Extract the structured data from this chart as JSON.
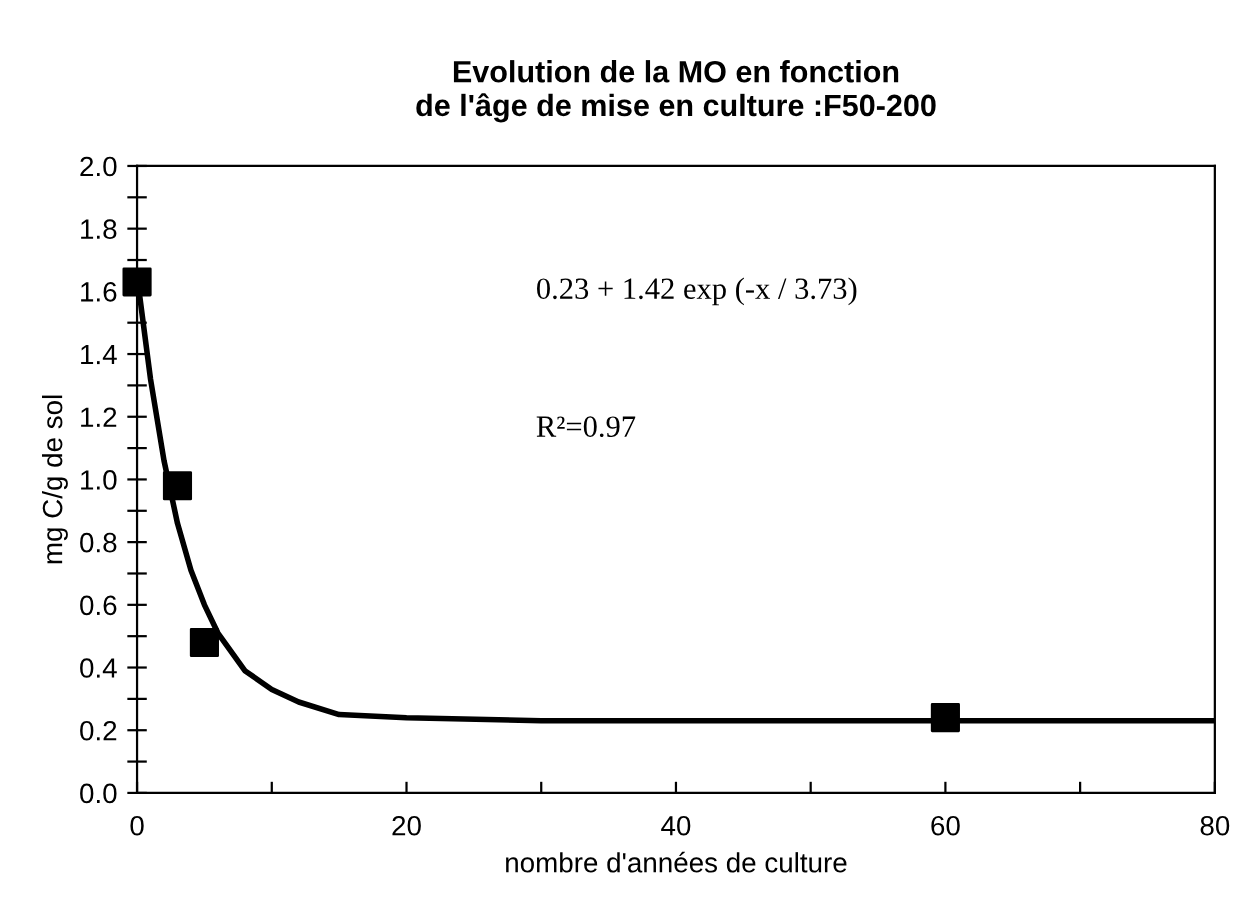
{
  "chart_data": {
    "type": "scatter",
    "title": "Evolution de la MO en fonction\nde l'âge de mise en culture :F50-200",
    "xlabel": "nombre d'années de culture",
    "ylabel": "mg C/g de sol",
    "series": [
      {
        "color": "#000000",
        "marker": "square",
        "x": [
          0,
          3,
          5,
          60
        ],
        "values": [
          1.63,
          0.98,
          0.48,
          0.24
        ]
      },
      {
        "type": "line",
        "color": "#000000",
        "marker": "none",
        "line_style": "solid",
        "x": [
          0,
          1,
          2,
          3,
          4,
          5,
          6,
          8,
          10,
          12,
          15,
          20,
          30,
          80
        ],
        "values": [
          1.65,
          1.32,
          1.06,
          0.86,
          0.71,
          0.6,
          0.51,
          0.39,
          0.33,
          0.29,
          0.25,
          0.24,
          0.23,
          0.23
        ]
      }
    ],
    "annotations": [
      "0.23 + 1.42 exp (-x / 3.73)",
      "R²=0.97"
    ],
    "xlim": [
      0,
      80
    ],
    "ylim": [
      0,
      2
    ],
    "xticks": [
      0,
      {
        "value": 10,
        "label": null
      },
      20,
      {
        "value": 30,
        "label": null
      },
      40,
      {
        "value": 50,
        "label": null
      },
      60,
      {
        "value": 70,
        "label": null
      },
      80
    ],
    "yticks": [
      {
        "value": 0,
        "label": "0.0"
      },
      {
        "value": 0.1,
        "label": null
      },
      {
        "value": 0.2,
        "label": "0.2"
      },
      {
        "value": 0.3,
        "label": null
      },
      {
        "value": 0.4,
        "label": "0.4"
      },
      {
        "value": 0.5,
        "label": null
      },
      {
        "value": 0.6,
        "label": "0.6"
      },
      {
        "value": 0.7,
        "label": null
      },
      {
        "value": 0.8,
        "label": "0.8"
      },
      {
        "value": 0.9,
        "label": null
      },
      {
        "value": 1.0,
        "label": "1.0"
      },
      {
        "value": 1.1,
        "label": null
      },
      {
        "value": 1.2,
        "label": "1.2"
      },
      {
        "value": 1.3,
        "label": null
      },
      {
        "value": 1.4,
        "label": "1.4"
      },
      {
        "value": 1.5,
        "label": null
      },
      {
        "value": 1.6,
        "label": "1.6"
      },
      {
        "value": 1.7,
        "label": null
      },
      {
        "value": 1.8,
        "label": "1.8"
      },
      {
        "value": 1.9,
        "label": null
      },
      {
        "value": 2.0,
        "label": "2.0"
      }
    ],
    "grid": false,
    "legend": false
  }
}
